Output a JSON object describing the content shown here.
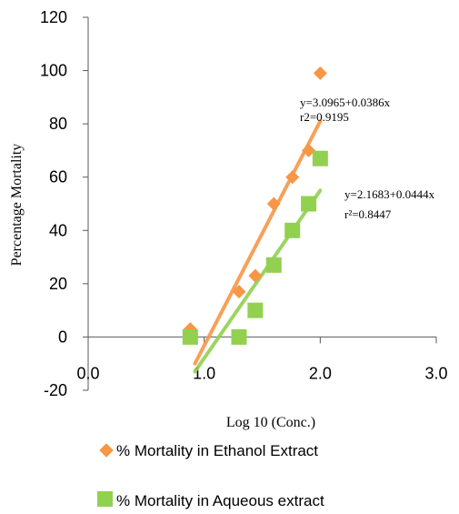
{
  "chart_data": {
    "type": "scatter",
    "xlabel": "Log 10 (Conc.)",
    "ylabel": "Percentage Mortality",
    "xlim": [
      0,
      3
    ],
    "ylim": [
      -20,
      120
    ],
    "x_ticks": [
      "0.0",
      "1.0",
      "2.0",
      "3.0"
    ],
    "y_ticks": [
      "-20",
      "0",
      "20",
      "40",
      "60",
      "80",
      "100",
      "120"
    ],
    "grid": false,
    "legend_position": "bottom",
    "series": [
      {
        "name": "% Mortality in Ethanol Extract",
        "marker": "diamond",
        "color": "#f79646",
        "x": [
          0.88,
          1.3,
          1.44,
          1.6,
          1.76,
          1.9,
          2.0
        ],
        "y": [
          3,
          17,
          23,
          50,
          60,
          70,
          99
        ],
        "trendline": {
          "x": [
            0.92,
            2.0
          ],
          "y": [
            -10,
            81
          ]
        },
        "equation": "y=3.0965+0.0386x",
        "r2": "r2=0.9195"
      },
      {
        "name": "% Mortality in Aqueous extract",
        "marker": "square",
        "color": "#92d050",
        "x": [
          0.88,
          1.3,
          1.44,
          1.6,
          1.76,
          1.9,
          2.0
        ],
        "y": [
          0,
          0,
          10,
          27,
          40,
          50,
          67
        ],
        "trendline": {
          "x": [
            0.92,
            2.0
          ],
          "y": [
            -13,
            55
          ]
        },
        "equation": "y=2.1683+0.0444x",
        "r2": "r²=0.8447"
      }
    ]
  }
}
